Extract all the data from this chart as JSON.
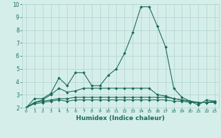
{
  "xlabel": "Humidex (Indice chaleur)",
  "ylabel": "",
  "xlim": [
    -0.5,
    23.5
  ],
  "ylim": [
    2,
    10
  ],
  "xticks": [
    0,
    1,
    2,
    3,
    4,
    5,
    6,
    7,
    8,
    9,
    10,
    11,
    12,
    13,
    14,
    15,
    16,
    17,
    18,
    19,
    20,
    21,
    22,
    23
  ],
  "yticks": [
    2,
    3,
    4,
    5,
    6,
    7,
    8,
    9,
    10
  ],
  "background_color": "#d5eeea",
  "grid_color": "#aed4cc",
  "line_color": "#1a6b5a",
  "series": [
    {
      "x": [
        0,
        1,
        2,
        3,
        4,
        5,
        6,
        7,
        8,
        9,
        10,
        11,
        12,
        13,
        14,
        15,
        16,
        17,
        18,
        19,
        20,
        21,
        22,
        23
      ],
      "y": [
        2.0,
        2.7,
        2.7,
        3.1,
        4.3,
        3.7,
        4.7,
        4.7,
        3.7,
        3.7,
        4.5,
        5.0,
        6.2,
        7.8,
        9.8,
        9.8,
        8.3,
        6.7,
        3.5,
        2.8,
        2.5,
        2.2,
        2.6,
        2.5
      ]
    },
    {
      "x": [
        0,
        1,
        2,
        3,
        4,
        5,
        6,
        7,
        8,
        9,
        10,
        11,
        12,
        13,
        14,
        15,
        16,
        17,
        18,
        19,
        20,
        21,
        22,
        23
      ],
      "y": [
        2.0,
        2.4,
        2.6,
        3.0,
        3.5,
        3.2,
        3.3,
        3.5,
        3.5,
        3.5,
        3.5,
        3.5,
        3.5,
        3.5,
        3.5,
        3.5,
        3.0,
        2.9,
        2.7,
        2.6,
        2.5,
        2.4,
        2.4,
        2.5
      ]
    },
    {
      "x": [
        0,
        1,
        2,
        3,
        4,
        5,
        6,
        7,
        8,
        9,
        10,
        11,
        12,
        13,
        14,
        15,
        16,
        17,
        18,
        19,
        20,
        21,
        22,
        23
      ],
      "y": [
        2.0,
        2.4,
        2.5,
        2.6,
        2.7,
        2.7,
        2.8,
        2.8,
        2.8,
        2.8,
        2.8,
        2.8,
        2.8,
        2.8,
        2.8,
        2.8,
        2.8,
        2.8,
        2.7,
        2.6,
        2.5,
        2.4,
        2.4,
        2.5
      ]
    },
    {
      "x": [
        0,
        1,
        2,
        3,
        4,
        5,
        6,
        7,
        8,
        9,
        10,
        11,
        12,
        13,
        14,
        15,
        16,
        17,
        18,
        19,
        20,
        21,
        22,
        23
      ],
      "y": [
        2.0,
        2.3,
        2.4,
        2.5,
        2.6,
        2.5,
        2.6,
        2.6,
        2.6,
        2.6,
        2.6,
        2.6,
        2.6,
        2.6,
        2.6,
        2.6,
        2.6,
        2.6,
        2.5,
        2.5,
        2.4,
        2.4,
        2.4,
        2.4
      ]
    }
  ]
}
